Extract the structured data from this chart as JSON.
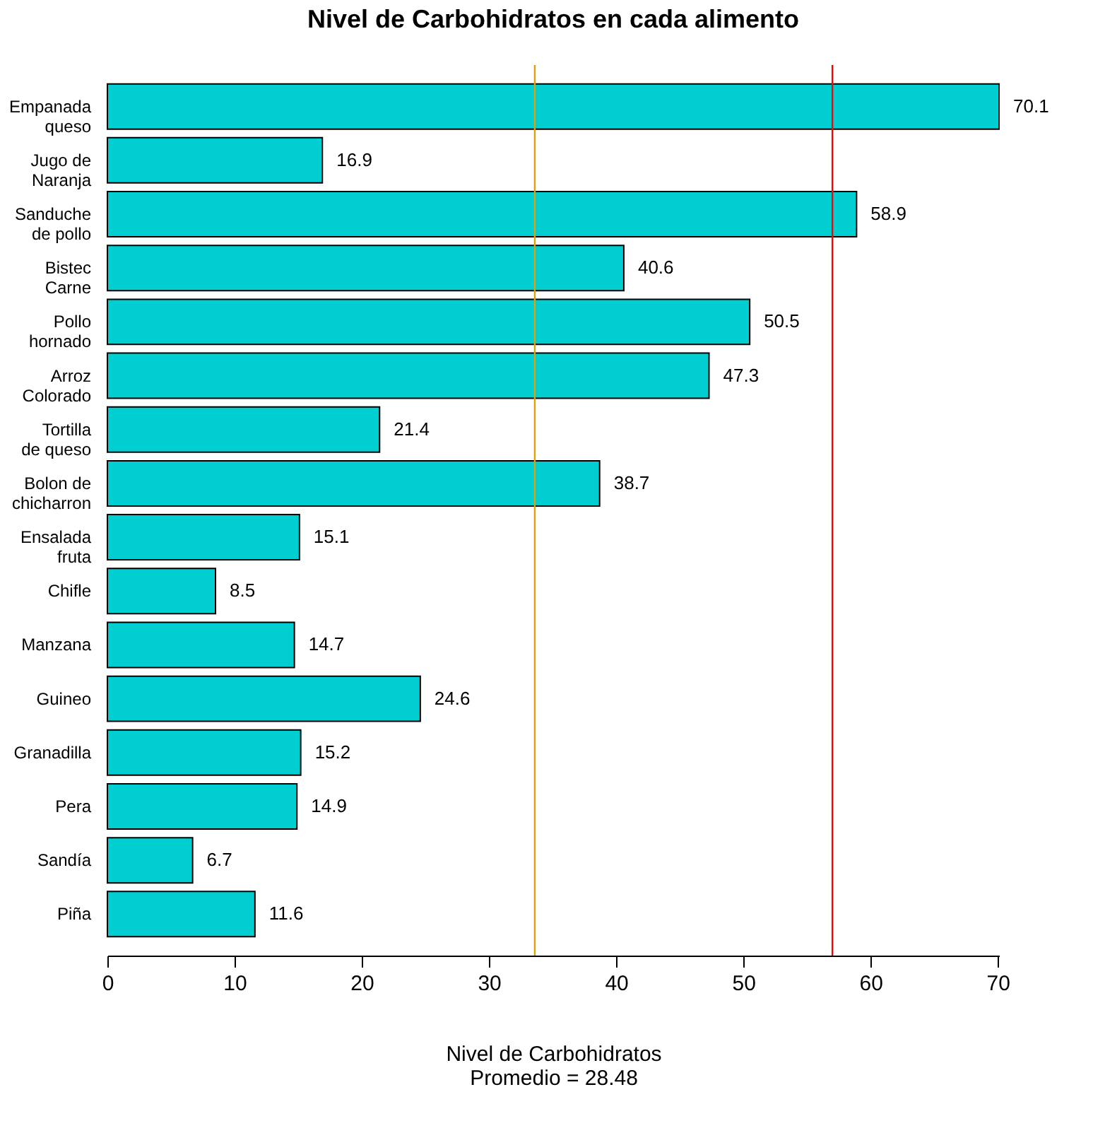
{
  "chart_data": {
    "type": "bar",
    "orientation": "horizontal",
    "title": "Nivel de Carbohidratos en cada alimento",
    "xlabel": "Nivel de Carbohidratos",
    "annotations": [
      "Promedio = 28.48"
    ],
    "categories": [
      "Empanada\nqueso",
      "Jugo de\nNaranja",
      "Sanduche\nde pollo",
      "Bistec\nCarne",
      "Pollo\nhornado",
      "Arroz\nColorado",
      "Tortilla\nde queso",
      "Bolon de\nchicharron",
      "Ensalada\nfruta",
      "Chifle",
      "Manzana",
      "Guineo",
      "Granadilla",
      "Pera",
      "Sandía",
      "Piña"
    ],
    "values": [
      70.1,
      16.9,
      58.9,
      40.6,
      50.5,
      47.3,
      21.4,
      38.7,
      15.1,
      8.5,
      14.7,
      24.6,
      15.2,
      14.9,
      6.7,
      11.6
    ],
    "color": "#00ced1",
    "data_labels": true,
    "xlim": [
      0,
      70.1
    ],
    "xticks": [
      0,
      10,
      20,
      30,
      40,
      50,
      60,
      70
    ],
    "grid": false,
    "ref_lines": [
      {
        "axis": "x",
        "value": 33.6,
        "color": "#e69f00"
      },
      {
        "axis": "x",
        "value": 57.0,
        "color": "#ff0000"
      }
    ]
  }
}
